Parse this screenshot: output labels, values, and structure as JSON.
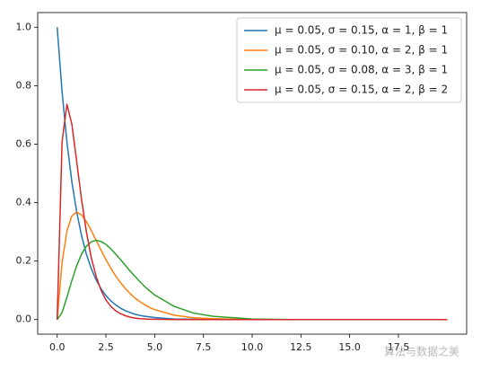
{
  "chart_data": {
    "type": "line",
    "x": [
      0,
      0.25,
      0.5,
      0.75,
      1,
      1.25,
      1.5,
      1.75,
      2,
      2.25,
      2.5,
      2.75,
      3,
      3.25,
      3.5,
      3.75,
      4,
      4.25,
      4.5,
      4.75,
      5,
      6,
      7,
      8,
      10,
      12,
      14,
      16,
      18,
      20
    ],
    "series": [
      {
        "name": "μ = 0.05,  σ = 0.15,  α = 1,  β = 1",
        "color": "#1f77b4",
        "values": [
          1,
          0.779,
          0.607,
          0.472,
          0.368,
          0.287,
          0.223,
          0.174,
          0.135,
          0.105,
          0.082,
          0.064,
          0.05,
          0.039,
          0.03,
          0.024,
          0.018,
          0.014,
          0.011,
          0.009,
          0.007,
          0.002,
          0.001,
          0,
          0,
          0,
          0,
          0,
          0,
          0
        ]
      },
      {
        "name": "μ = 0.05,  σ = 0.10,  α = 2,  β = 1",
        "color": "#ff7f0e",
        "values": [
          0,
          0.195,
          0.303,
          0.354,
          0.368,
          0.358,
          0.335,
          0.304,
          0.271,
          0.237,
          0.205,
          0.176,
          0.149,
          0.126,
          0.106,
          0.088,
          0.073,
          0.061,
          0.05,
          0.041,
          0.034,
          0.015,
          0.006,
          0.003,
          0,
          0,
          0,
          0,
          0,
          0
        ]
      },
      {
        "name": "μ = 0.05,  σ = 0.08,  α = 3,  β = 1",
        "color": "#2ca02c",
        "values": [
          0,
          0.024,
          0.076,
          0.133,
          0.184,
          0.224,
          0.251,
          0.266,
          0.271,
          0.267,
          0.257,
          0.242,
          0.224,
          0.205,
          0.185,
          0.165,
          0.147,
          0.129,
          0.112,
          0.098,
          0.084,
          0.045,
          0.022,
          0.011,
          0.002,
          0,
          0,
          0,
          0,
          0
        ]
      },
      {
        "name": "μ = 0.05,  σ = 0.15,  α = 2,  β = 2",
        "color": "#d62728",
        "values": [
          0,
          0.607,
          0.736,
          0.669,
          0.541,
          0.41,
          0.299,
          0.211,
          0.147,
          0.1,
          0.067,
          0.045,
          0.03,
          0.02,
          0.013,
          0.008,
          0.005,
          0.003,
          0.002,
          0.001,
          0.001,
          0,
          0,
          0,
          0,
          0,
          0,
          0,
          0,
          0
        ]
      }
    ],
    "xlim": [
      -1,
      21
    ],
    "ylim": [
      -0.05,
      1.05
    ],
    "xticks": [
      {
        "value": 0,
        "label": "0.0"
      },
      {
        "value": 2.5,
        "label": "2.5"
      },
      {
        "value": 5,
        "label": "5.0"
      },
      {
        "value": 7.5,
        "label": "7.5"
      },
      {
        "value": 10,
        "label": "10.0"
      },
      {
        "value": 12.5,
        "label": "12.5"
      },
      {
        "value": 15,
        "label": "15.0"
      },
      {
        "value": 17.5,
        "label": "17.5"
      }
    ],
    "yticks": [
      {
        "value": 0,
        "label": "0.0"
      },
      {
        "value": 0.2,
        "label": "0.2"
      },
      {
        "value": 0.4,
        "label": "0.4"
      },
      {
        "value": 0.6,
        "label": "0.6"
      },
      {
        "value": 0.8,
        "label": "0.8"
      },
      {
        "value": 1,
        "label": "1.0"
      }
    ],
    "legend": "upper right",
    "watermark": "算法与数据之美"
  }
}
